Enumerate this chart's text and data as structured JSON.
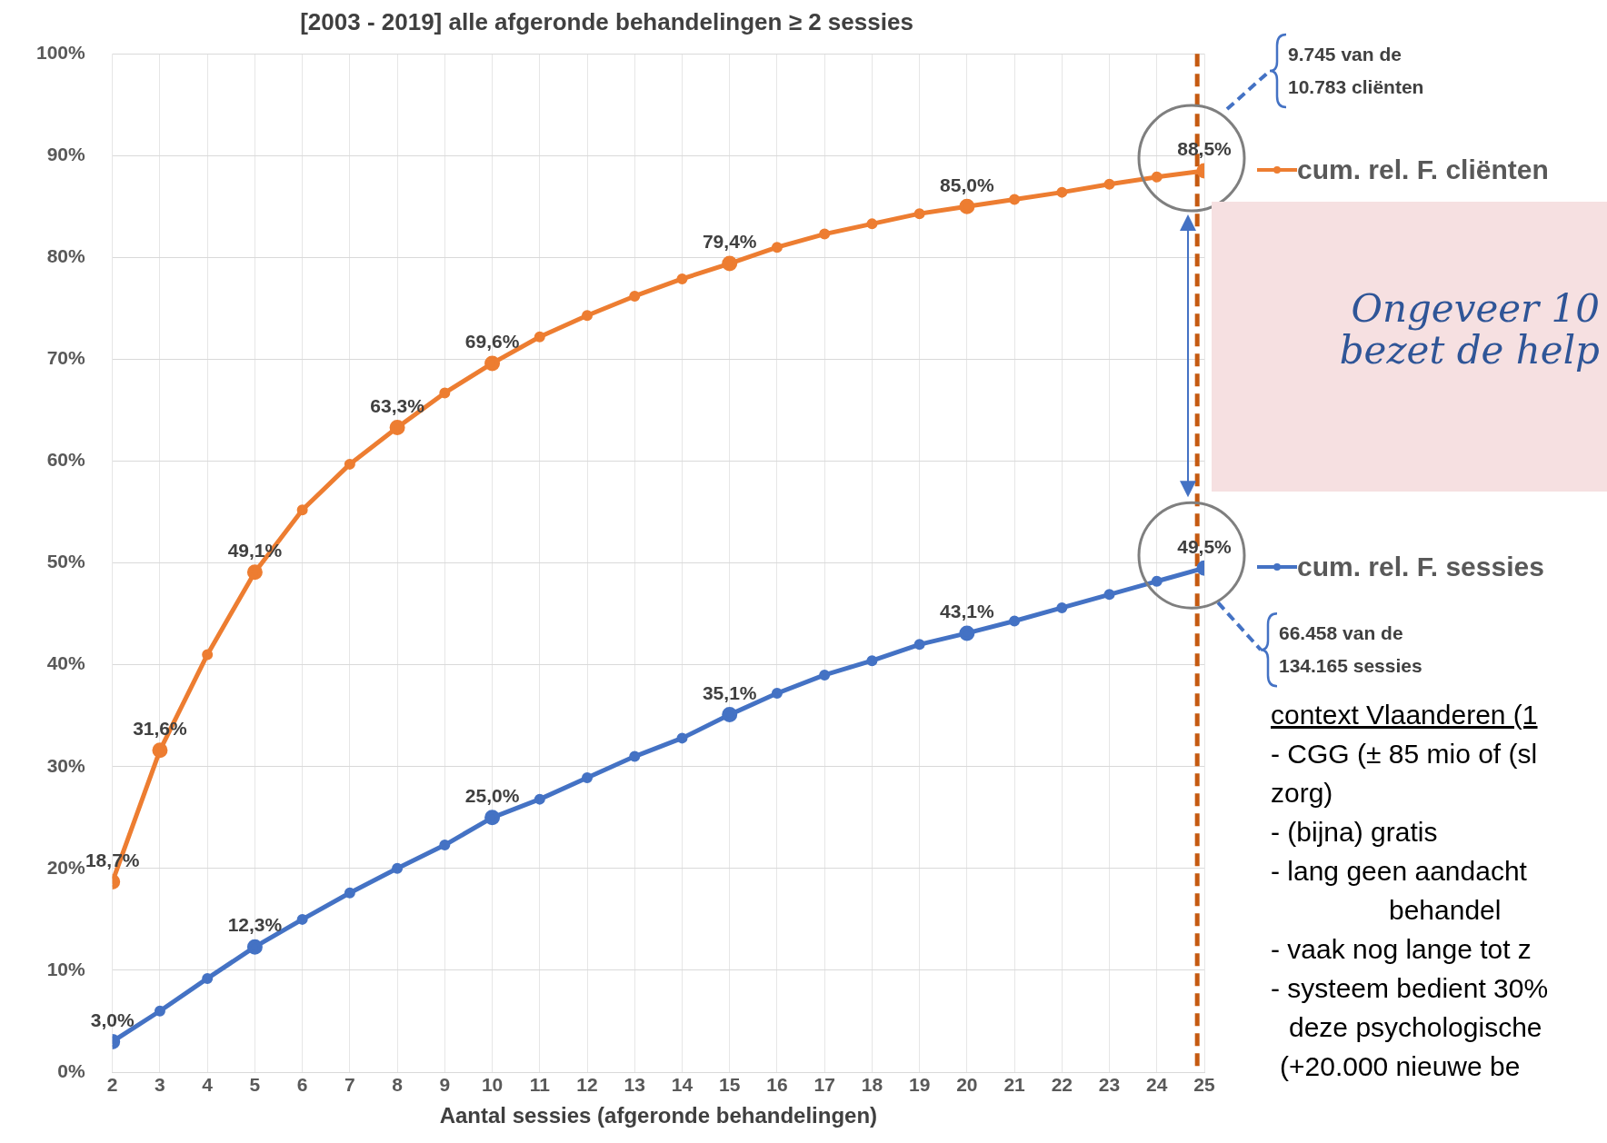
{
  "chart_data": {
    "type": "line",
    "title": "[2003 - 2019] alle afgeronde behandelingen ≥ 2 sessies",
    "xlabel": "Aantal sessies (afgeronde behandelingen)",
    "x": [
      2,
      3,
      4,
      5,
      6,
      7,
      8,
      9,
      10,
      11,
      12,
      13,
      14,
      15,
      16,
      17,
      18,
      19,
      20,
      21,
      22,
      23,
      24,
      25
    ],
    "xlim": [
      2,
      25
    ],
    "xticks": [
      2,
      3,
      4,
      5,
      6,
      7,
      8,
      9,
      10,
      11,
      12,
      13,
      14,
      15,
      16,
      17,
      18,
      19,
      20,
      21,
      22,
      23,
      24,
      25
    ],
    "ylim": [
      0,
      100
    ],
    "yticks": [
      {
        "value": 0,
        "label": "0%"
      },
      {
        "value": 10,
        "label": "10%"
      },
      {
        "value": 20,
        "label": "20%"
      },
      {
        "value": 30,
        "label": "30%"
      },
      {
        "value": 40,
        "label": "40%"
      },
      {
        "value": 50,
        "label": "50%"
      },
      {
        "value": 60,
        "label": "60%"
      },
      {
        "value": 70,
        "label": "70%"
      },
      {
        "value": 80,
        "label": "80%"
      },
      {
        "value": 90,
        "label": "90%"
      },
      {
        "value": 100,
        "label": "100%"
      }
    ],
    "series": [
      {
        "name": "cum. rel. F. cliënten",
        "color": "#ed7d31",
        "values": [
          18.7,
          31.6,
          41.0,
          49.1,
          55.2,
          59.7,
          63.3,
          66.7,
          69.6,
          72.2,
          74.3,
          76.2,
          77.9,
          79.4,
          81.0,
          82.3,
          83.3,
          84.3,
          85.0,
          85.7,
          86.4,
          87.2,
          87.9,
          88.5
        ],
        "value_labels": [
          "18,7%",
          "31,6%",
          null,
          "49,1%",
          null,
          null,
          "63,3%",
          null,
          "69,6%",
          null,
          null,
          null,
          null,
          "79,4%",
          null,
          null,
          null,
          null,
          "85,0%",
          null,
          null,
          null,
          null,
          "88,5%"
        ]
      },
      {
        "name": "cum. rel. F. sessies",
        "color": "#4472c4",
        "values": [
          3.0,
          6.0,
          9.2,
          12.3,
          15.0,
          17.6,
          20.0,
          22.3,
          25.0,
          26.8,
          28.9,
          31.0,
          32.8,
          35.1,
          37.2,
          39.0,
          40.4,
          42.0,
          43.1,
          44.3,
          45.6,
          46.9,
          48.2,
          49.5
        ],
        "value_labels": [
          "3,0%",
          null,
          null,
          "12,3%",
          null,
          null,
          null,
          null,
          "25,0%",
          null,
          null,
          null,
          null,
          "35,1%",
          null,
          null,
          null,
          null,
          "43,1%",
          null,
          null,
          null,
          null,
          "49,5%"
        ]
      }
    ],
    "ref_lines": [
      {
        "axis": "x",
        "value": 24.85,
        "color": "#c55a11",
        "line_style": "dashed"
      }
    ],
    "annotations": [
      "9.745 van de\n10.783 cliënten",
      "66.458 van de\n134.165 sessies",
      "Ongeveer 10\nbezet de help",
      "context Vlaanderen (1",
      "- CGG (± 85 mio of (sl",
      "zorg)",
      "- (bijna) gratis",
      "- lang geen aandacht",
      "behandel",
      "- vaak nog lange tot z",
      "- systeem bedient 30%",
      "deze psychologische",
      "(+20.000 nieuwe be"
    ],
    "grid": true,
    "legend": "right",
    "marker": "circle",
    "line_style": "solid"
  }
}
